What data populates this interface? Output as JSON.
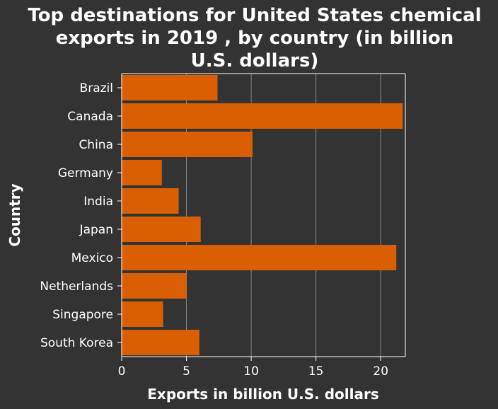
{
  "chart_data": {
    "type": "bar",
    "orientation": "horizontal",
    "title": "Top destinations for United States chemical exports in 2019 , by country (in billion U.S. dollars)",
    "title_lines": [
      "Top destinations for United States chemical",
      "exports in 2019 , by country (in billion",
      "U.S. dollars)"
    ],
    "xlabel": "Exports in billion U.S. dollars",
    "ylabel": "Country",
    "categories": [
      "Brazil",
      "Canada",
      "China",
      "Germany",
      "India",
      "Japan",
      "Mexico",
      "Netherlands",
      "Singapore",
      "South Korea"
    ],
    "values": [
      7.4,
      21.7,
      10.1,
      3.1,
      4.4,
      6.1,
      21.2,
      5.0,
      3.2,
      6.0
    ],
    "xlim": [
      0,
      21.9
    ],
    "xticks": [
      0,
      5,
      10,
      15,
      20
    ],
    "grid": "vertical",
    "legend": "none",
    "colors": {
      "background": "#333333",
      "bar": "#d95f02",
      "text": "#ffffff",
      "grid": "#888888"
    }
  }
}
